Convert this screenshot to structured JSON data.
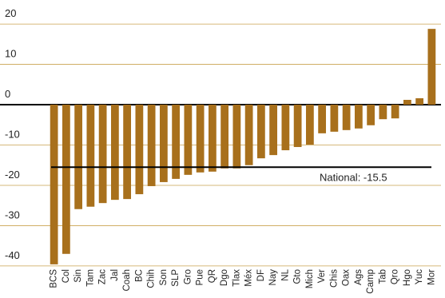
{
  "chart_data": {
    "type": "bar",
    "categories": [
      "BCS",
      "Col",
      "Sin",
      "Tam",
      "Zac",
      "Jal",
      "Coah",
      "BC",
      "Chih",
      "Son",
      "SLP",
      "Gro",
      "Pue",
      "QR",
      "Dgo",
      "Tlax",
      "Méx",
      "DF",
      "Nay",
      "NL",
      "Gto",
      "Mich",
      "Ver",
      "Chis",
      "Oax",
      "Ags",
      "Camp",
      "Tab",
      "Qro",
      "Hgo",
      "Yuc",
      "Mor"
    ],
    "values": [
      -39.6,
      -37.0,
      -25.9,
      -25.3,
      -24.4,
      -23.6,
      -23.4,
      -22.2,
      -20.2,
      -19.2,
      -18.4,
      -17.4,
      -16.8,
      -16.6,
      -15.8,
      -15.8,
      -15.0,
      -13.3,
      -12.5,
      -11.3,
      -10.5,
      -9.9,
      -7.1,
      -6.7,
      -6.3,
      -5.9,
      -5.1,
      -3.6,
      -3.4,
      1.2,
      1.6,
      18.8
    ],
    "color": "#a8701c",
    "ylim": [
      -42,
      22
    ],
    "yticks": [
      -40,
      -30,
      -20,
      -10,
      0,
      10,
      20
    ],
    "grid": true,
    "reference_line": {
      "value": -15.5,
      "label": "National: -15.5"
    }
  }
}
